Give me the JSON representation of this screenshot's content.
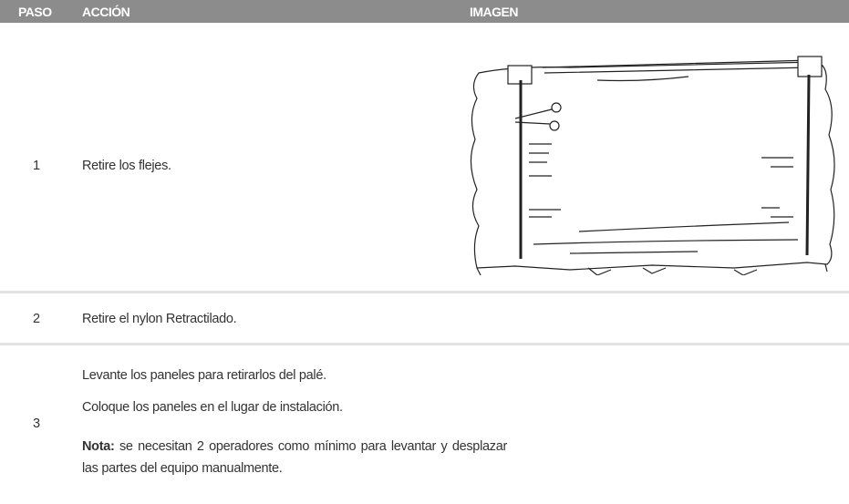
{
  "header": {
    "step": "PASO",
    "action": "ACCIÓN",
    "image": "IMAGEN"
  },
  "rows": [
    {
      "step": "1",
      "lines": [
        "Retire los flejes."
      ]
    },
    {
      "step": "2",
      "lines": [
        "Retire el nylon Retractilado."
      ]
    },
    {
      "step": "3",
      "lines": [
        "Levante los paneles para retirarlos del palé.",
        "Coloque los paneles en el lugar de instalación."
      ],
      "note": {
        "label": "Nota:",
        "text": "se necesitan 2 operadores como mínimo para levantar y desplazar las partes del equipo manualmente."
      }
    }
  ]
}
